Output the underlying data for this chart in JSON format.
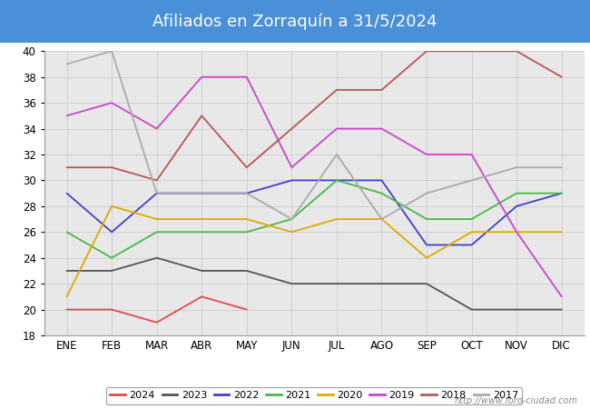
{
  "title": "Afiliados en Zorraquín a 31/5/2024",
  "title_bg_color": "#4a90d9",
  "title_text_color": "white",
  "footer": "http://www.foro-ciudad.com",
  "months": [
    "ENE",
    "FEB",
    "MAR",
    "ABR",
    "MAY",
    "JUN",
    "JUL",
    "AGO",
    "SEP",
    "OCT",
    "NOV",
    "DIC"
  ],
  "ylim": [
    18,
    40
  ],
  "yticks": [
    18,
    20,
    22,
    24,
    26,
    28,
    30,
    32,
    34,
    36,
    38,
    40
  ],
  "series": {
    "2024": {
      "color": "#e8474c",
      "data": [
        20,
        20,
        19,
        21,
        20,
        null,
        null,
        null,
        null,
        null,
        null,
        null
      ]
    },
    "2023": {
      "color": "#555555",
      "data": [
        23,
        23,
        24,
        23,
        23,
        22,
        22,
        22,
        22,
        20,
        20,
        20
      ]
    },
    "2022": {
      "color": "#4040cc",
      "data": [
        29,
        26,
        29,
        29,
        29,
        30,
        30,
        30,
        25,
        25,
        28,
        29
      ]
    },
    "2021": {
      "color": "#44bb44",
      "data": [
        26,
        24,
        26,
        26,
        26,
        27,
        30,
        29,
        27,
        27,
        29,
        29
      ]
    },
    "2020": {
      "color": "#ddaa00",
      "data": [
        21,
        28,
        27,
        27,
        27,
        26,
        27,
        27,
        24,
        26,
        26,
        26
      ]
    },
    "2019": {
      "color": "#cc44cc",
      "data": [
        35,
        36,
        34,
        38,
        38,
        31,
        34,
        34,
        32,
        32,
        26,
        21
      ]
    },
    "2018": {
      "color": "#bb5555",
      "data": [
        31,
        31,
        30,
        35,
        31,
        34,
        37,
        37,
        40,
        40,
        40,
        38
      ]
    },
    "2017": {
      "color": "#aaaaaa",
      "data": [
        39,
        40,
        29,
        29,
        29,
        27,
        32,
        27,
        29,
        30,
        31,
        31
      ]
    }
  },
  "legend_order": [
    "2024",
    "2023",
    "2022",
    "2021",
    "2020",
    "2019",
    "2018",
    "2017"
  ],
  "bg_color": "#ffffff",
  "plot_bg_color": "#e8e8e8"
}
